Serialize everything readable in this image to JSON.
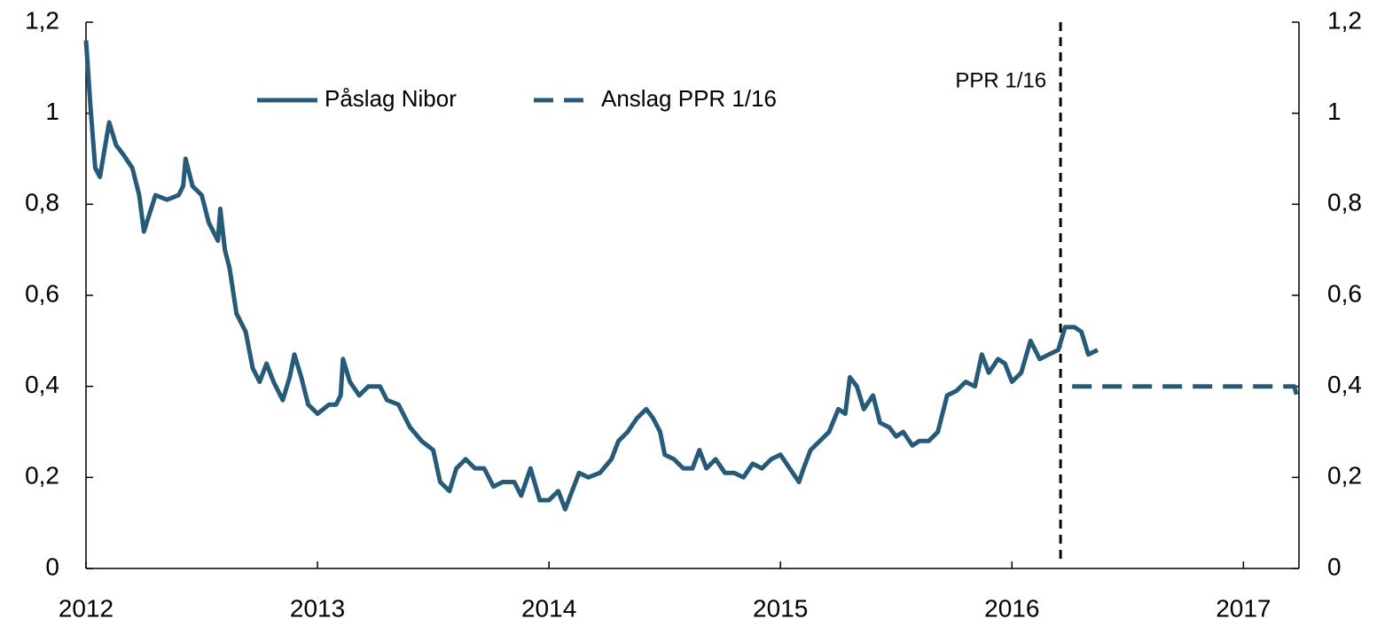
{
  "chart_data": {
    "type": "line",
    "xlim": [
      2012,
      2017.24
    ],
    "xticks": [
      2012,
      2013,
      2014,
      2015,
      2016,
      2017
    ],
    "ylim": [
      0,
      1.2
    ],
    "yticks": [
      0,
      {
        "value": 0.2,
        "label": "0,2"
      },
      {
        "value": 0.4,
        "label": "0,4"
      },
      {
        "value": 0.6,
        "label": "0,6"
      },
      {
        "value": 0.8,
        "label": "0,8"
      },
      1,
      {
        "value": 1.2,
        "label": "1,2"
      }
    ],
    "y2lim": [
      0,
      1.2
    ],
    "y2ticks": [
      0,
      {
        "value": 0.2,
        "label": "0,2"
      },
      {
        "value": 0.4,
        "label": "0,4"
      },
      {
        "value": 0.6,
        "label": "0,6"
      },
      {
        "value": 0.8,
        "label": "0,8"
      },
      1,
      {
        "value": 1.2,
        "label": "1,2"
      }
    ],
    "legend": "top",
    "annotations": [
      {
        "text": "PPR 1/16",
        "x": 2016.21
      }
    ],
    "series": [
      {
        "name": "Påslag Nibor",
        "color": "#255a78",
        "dash": false,
        "x": [
          2012.0,
          2012.02,
          2012.04,
          2012.06,
          2012.08,
          2012.1,
          2012.13,
          2012.16,
          2012.2,
          2012.23,
          2012.25,
          2012.3,
          2012.35,
          2012.4,
          2012.42,
          2012.43,
          2012.46,
          2012.5,
          2012.53,
          2012.57,
          2012.58,
          2012.6,
          2012.62,
          2012.65,
          2012.69,
          2012.72,
          2012.75,
          2012.78,
          2012.81,
          2012.85,
          2012.88,
          2012.9,
          2012.93,
          2012.96,
          2013.0,
          2013.05,
          2013.08,
          2013.1,
          2013.11,
          2013.14,
          2013.18,
          2013.22,
          2013.27,
          2013.3,
          2013.35,
          2013.4,
          2013.45,
          2013.5,
          2013.53,
          2013.57,
          2013.6,
          2013.64,
          2013.68,
          2013.72,
          2013.76,
          2013.8,
          2013.85,
          2013.88,
          2013.92,
          2013.96,
          2014.0,
          2014.04,
          2014.07,
          2014.1,
          2014.13,
          2014.17,
          2014.22,
          2014.27,
          2014.3,
          2014.34,
          2014.38,
          2014.42,
          2014.45,
          2014.48,
          2014.5,
          2014.54,
          2014.58,
          2014.62,
          2014.65,
          2014.68,
          2014.72,
          2014.76,
          2014.8,
          2014.84,
          2014.88,
          2014.92,
          2014.96,
          2015.0,
          2015.04,
          2015.08,
          2015.1,
          2015.13,
          2015.17,
          2015.21,
          2015.25,
          2015.28,
          2015.3,
          2015.33,
          2015.36,
          2015.4,
          2015.43,
          2015.47,
          2015.5,
          2015.53,
          2015.57,
          2015.6,
          2015.64,
          2015.68,
          2015.72,
          2015.76,
          2015.8,
          2015.84,
          2015.87,
          2015.9,
          2015.94,
          2015.97,
          2016.0,
          2016.04,
          2016.08,
          2016.12,
          2016.16,
          2016.2,
          2016.23,
          2016.27,
          2016.3,
          2016.33,
          2016.37
        ],
        "values": [
          1.16,
          1.01,
          0.88,
          0.86,
          0.92,
          0.98,
          0.93,
          0.91,
          0.88,
          0.82,
          0.74,
          0.82,
          0.81,
          0.82,
          0.84,
          0.9,
          0.84,
          0.82,
          0.76,
          0.72,
          0.79,
          0.7,
          0.66,
          0.56,
          0.52,
          0.44,
          0.41,
          0.45,
          0.41,
          0.37,
          0.42,
          0.47,
          0.42,
          0.36,
          0.34,
          0.36,
          0.36,
          0.38,
          0.46,
          0.41,
          0.38,
          0.4,
          0.4,
          0.37,
          0.36,
          0.31,
          0.28,
          0.26,
          0.19,
          0.17,
          0.22,
          0.24,
          0.22,
          0.22,
          0.18,
          0.19,
          0.19,
          0.16,
          0.22,
          0.15,
          0.15,
          0.17,
          0.13,
          0.17,
          0.21,
          0.2,
          0.21,
          0.24,
          0.28,
          0.3,
          0.33,
          0.35,
          0.33,
          0.3,
          0.25,
          0.24,
          0.22,
          0.22,
          0.26,
          0.22,
          0.24,
          0.21,
          0.21,
          0.2,
          0.23,
          0.22,
          0.24,
          0.25,
          0.22,
          0.19,
          0.22,
          0.26,
          0.28,
          0.3,
          0.35,
          0.34,
          0.42,
          0.4,
          0.35,
          0.38,
          0.32,
          0.31,
          0.29,
          0.3,
          0.27,
          0.28,
          0.28,
          0.3,
          0.38,
          0.39,
          0.41,
          0.4,
          0.47,
          0.43,
          0.46,
          0.45,
          0.41,
          0.43,
          0.5,
          0.46,
          0.47,
          0.48,
          0.53,
          0.53,
          0.52,
          0.47,
          0.48
        ]
      },
      {
        "name": "Anslag PPR 1/16",
        "color": "#255a78",
        "dash": true,
        "x": [
          2016.26,
          2017.22,
          2017.24
        ],
        "values": [
          0.4,
          0.4,
          0.36
        ]
      }
    ]
  }
}
